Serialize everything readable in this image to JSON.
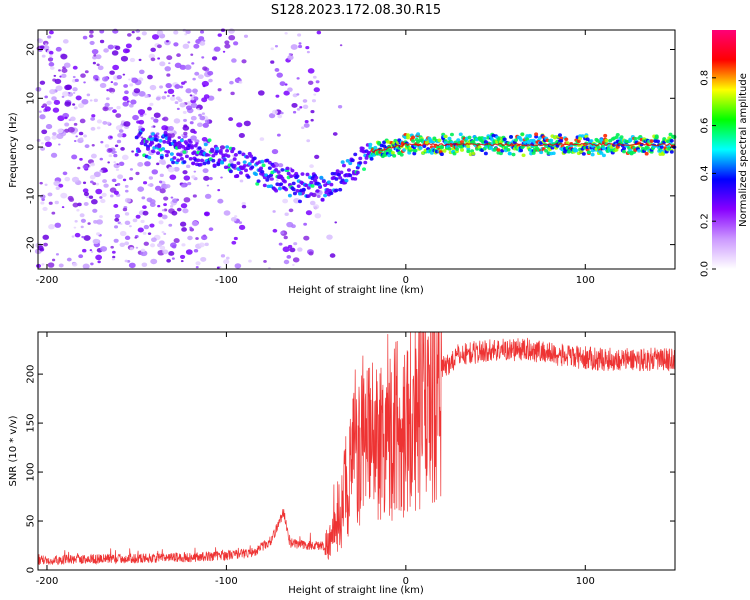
{
  "title": "S128.2023.172.08.30.R15",
  "chart_data": [
    {
      "type": "heatmap",
      "xlabel": "Height of straight line (km)",
      "ylabel": "Frequency (Hz)",
      "xlim": [
        -205,
        150
      ],
      "ylim": [
        -25,
        24
      ],
      "x_ticks": [
        -200,
        -100,
        0,
        100
      ],
      "y_ticks": [
        -20,
        -10,
        0,
        10,
        20
      ],
      "colorbar": {
        "label": "Normalized spectral amplitude",
        "range": [
          0,
          1
        ],
        "ticks": [
          0.0,
          0.2,
          0.4,
          0.6,
          0.8
        ],
        "colors": [
          "#ffffff",
          "#cc99ff",
          "#8800ff",
          "#0000ff",
          "#00ffff",
          "#00ff00",
          "#ffff00",
          "#ff0000",
          "#ff0077"
        ]
      },
      "ridge": {
        "x": [
          -150,
          -120,
          -100,
          -80,
          -60,
          -45,
          -35,
          -20,
          0,
          50,
          100,
          150
        ],
        "y": [
          1,
          -1,
          -2,
          -5,
          -8,
          -9,
          -6,
          -1,
          0.5,
          0.5,
          0.5,
          0.5
        ]
      }
    },
    {
      "type": "line",
      "xlabel": "Height of straight line (km)",
      "ylabel": "SNR (10 * v/v)",
      "xlim": [
        -205,
        150
      ],
      "ylim": [
        0,
        243
      ],
      "x_ticks": [
        -200,
        -100,
        0,
        100
      ],
      "y_ticks": [
        0,
        50,
        100,
        150,
        200
      ],
      "line_color": "#ee3333",
      "envelope": {
        "x": [
          -205,
          -180,
          -150,
          -120,
          -100,
          -85,
          -75,
          -68,
          -65,
          -55,
          -45,
          -40,
          -35,
          -30,
          -20,
          -10,
          0,
          10,
          20,
          30,
          50,
          70,
          90,
          110,
          130,
          150
        ],
        "y": [
          10,
          11,
          12,
          13,
          15,
          18,
          30,
          60,
          28,
          25,
          25,
          35,
          70,
          110,
          130,
          140,
          150,
          175,
          205,
          220,
          225,
          225,
          218,
          215,
          215,
          215
        ]
      }
    }
  ]
}
